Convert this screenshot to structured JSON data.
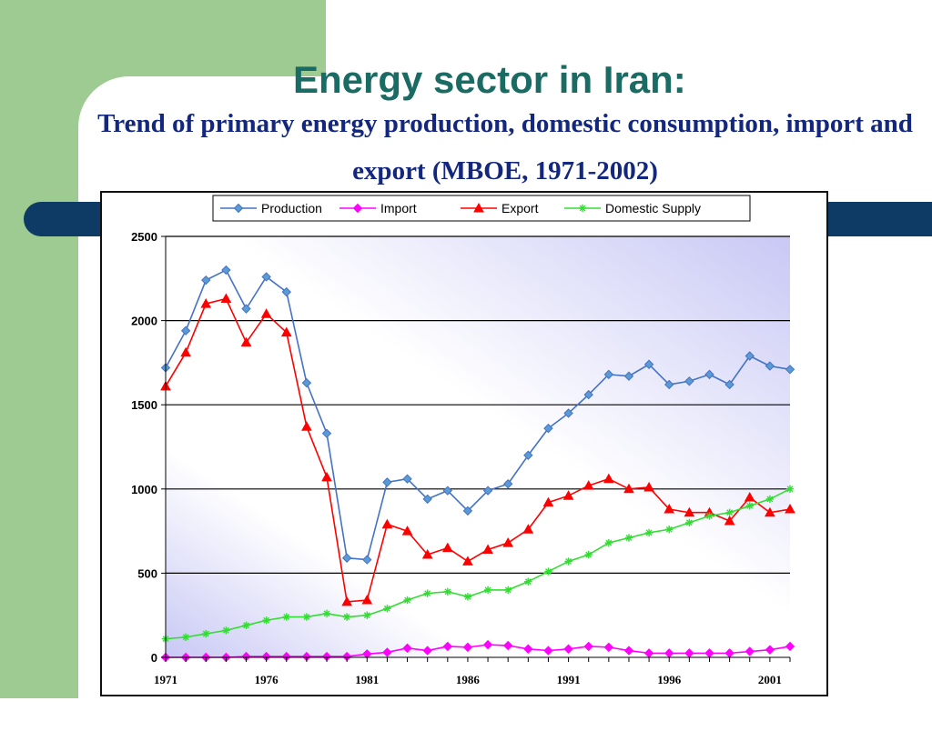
{
  "slide": {
    "title": "Energy sector in Iran:",
    "subtitle": "Trend of primary energy production,  domestic consumption, import and export (MBOE, 1971-2002)"
  },
  "colors": {
    "background_band": "#9ecb91",
    "accent_bar": "#0d3b66",
    "title": "#1a6b63",
    "subtitle": "#12277d",
    "plot_gradient_light": "#ffffff",
    "plot_gradient_dark": "#c8c8f5"
  },
  "chart_data": {
    "type": "line",
    "x": [
      1971,
      1972,
      1973,
      1974,
      1975,
      1976,
      1977,
      1978,
      1979,
      1980,
      1981,
      1982,
      1983,
      1984,
      1985,
      1986,
      1987,
      1988,
      1989,
      1990,
      1991,
      1992,
      1993,
      1994,
      1995,
      1996,
      1997,
      1998,
      1999,
      2000,
      2001,
      2002
    ],
    "x_tick_labels": [
      "1971",
      "1976",
      "1981",
      "1986",
      "1991",
      "1996",
      "2001"
    ],
    "x_tick_values": [
      1971,
      1976,
      1981,
      1986,
      1991,
      1996,
      2001
    ],
    "y_tick_labels": [
      "0",
      "500",
      "1000",
      "1500",
      "2000",
      "2500"
    ],
    "y_tick_values": [
      0,
      500,
      1000,
      1500,
      2000,
      2500
    ],
    "ylim": [
      0,
      2500
    ],
    "xlim": [
      1971,
      2002
    ],
    "grid": "horizontal",
    "legend_position": "top",
    "series": [
      {
        "name": "Production",
        "color": "#4472c4",
        "marker_fill": "#5b9bd5",
        "marker": "diamond",
        "values": [
          1720,
          1940,
          2240,
          2300,
          2070,
          2260,
          2170,
          1630,
          1330,
          590,
          580,
          1040,
          1060,
          940,
          990,
          870,
          990,
          1030,
          1200,
          1360,
          1450,
          1560,
          1680,
          1670,
          1740,
          1620,
          1640,
          1680,
          1620,
          1790,
          1730,
          1710
        ]
      },
      {
        "name": "Import",
        "color": "#ff00ff",
        "marker_fill": "#ff00ff",
        "marker": "diamond",
        "values": [
          0,
          0,
          0,
          0,
          5,
          5,
          5,
          5,
          5,
          5,
          20,
          30,
          55,
          40,
          65,
          60,
          75,
          70,
          50,
          40,
          50,
          65,
          60,
          40,
          25,
          25,
          25,
          25,
          25,
          35,
          45,
          65
        ]
      },
      {
        "name": "Export",
        "color": "#ff0000",
        "marker_fill": "#ff0000",
        "marker": "triangle",
        "values": [
          1610,
          1810,
          2100,
          2130,
          1870,
          2040,
          1930,
          1370,
          1070,
          330,
          340,
          790,
          750,
          610,
          650,
          570,
          640,
          680,
          760,
          920,
          960,
          1020,
          1060,
          1000,
          1010,
          880,
          860,
          860,
          810,
          950,
          860,
          880
        ]
      },
      {
        "name": "Domestic Supply",
        "color": "#33dd33",
        "marker_fill": "#33dd33",
        "marker": "star",
        "values": [
          110,
          120,
          140,
          160,
          190,
          220,
          240,
          240,
          260,
          240,
          250,
          290,
          340,
          380,
          390,
          360,
          400,
          400,
          450,
          510,
          570,
          610,
          680,
          710,
          740,
          760,
          800,
          840,
          860,
          900,
          940,
          1000
        ]
      }
    ]
  }
}
